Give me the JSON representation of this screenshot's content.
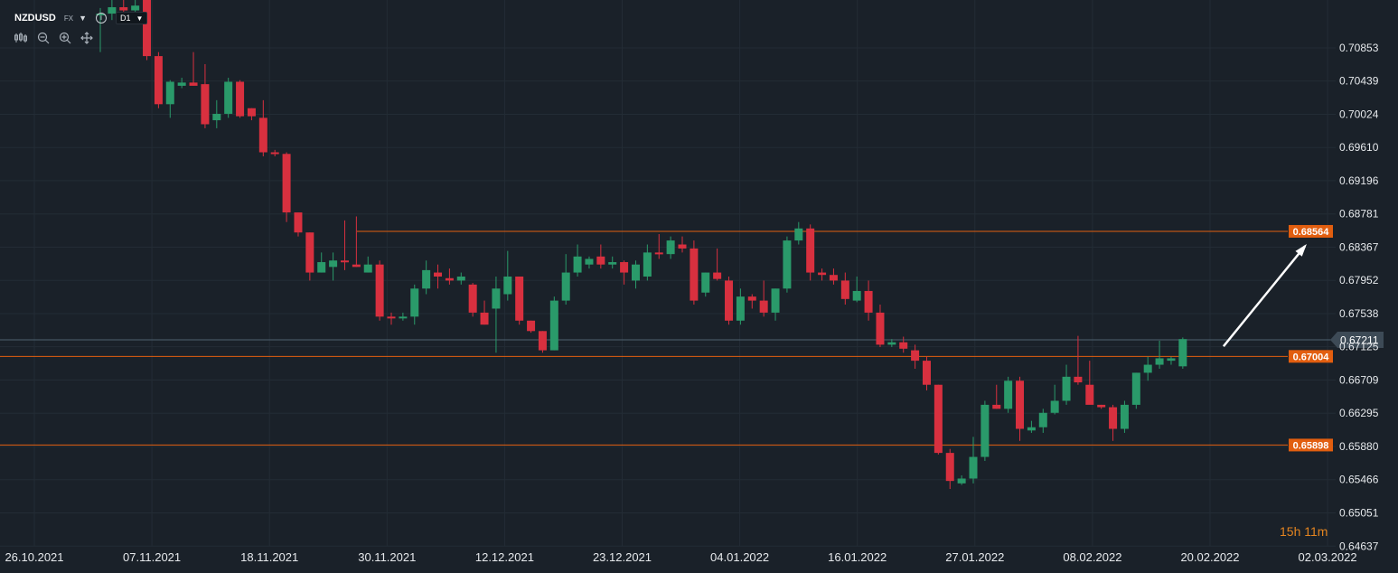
{
  "header": {
    "symbol": "NZDUSD",
    "market": "FX",
    "timeframe": "D1",
    "tools": [
      "bars-icon",
      "zoom-out-icon",
      "zoom-in-icon",
      "move-icon"
    ]
  },
  "countdown": "15h 11m",
  "chart_data": {
    "type": "candlestick",
    "symbol": "NZDUSD",
    "ylim": [
      0.6464,
      0.7145
    ],
    "y_ticks": [
      "0.70853",
      "0.70439",
      "0.70024",
      "0.69610",
      "0.69196",
      "0.68781",
      "0.68367",
      "0.67952",
      "0.67538",
      "0.67125",
      "0.66709",
      "0.66295",
      "0.65880",
      "0.65466",
      "0.65051",
      "0.64637"
    ],
    "x_ticks": [
      "26.10.2021",
      "07.11.2021",
      "18.11.2021",
      "30.11.2021",
      "12.12.2021",
      "23.12.2021",
      "04.01.2022",
      "16.01.2022",
      "27.01.2022",
      "08.02.2022",
      "20.02.2022",
      "02.03.2022"
    ],
    "candles": [
      [
        0.7126,
        0.7135,
        0.708,
        0.7128
      ],
      [
        0.7128,
        0.7145,
        0.712,
        0.7136
      ],
      [
        0.7136,
        0.7145,
        0.7123,
        0.7132
      ],
      [
        0.7132,
        0.7145,
        0.7125,
        0.7138
      ],
      [
        0.717,
        0.7172,
        0.707,
        0.7075
      ],
      [
        0.7075,
        0.708,
        0.701,
        0.7015
      ],
      [
        0.7015,
        0.7045,
        0.6998,
        0.7043
      ],
      [
        0.7038,
        0.7048,
        0.7035,
        0.7042
      ],
      [
        0.7042,
        0.708,
        0.7038,
        0.7038
      ],
      [
        0.704,
        0.7065,
        0.6985,
        0.699
      ],
      [
        0.6995,
        0.702,
        0.6985,
        0.7003
      ],
      [
        0.7003,
        0.7048,
        0.6998,
        0.7043
      ],
      [
        0.7043,
        0.7045,
        0.6998,
        0.7
      ],
      [
        0.701,
        0.701,
        0.6995,
        0.7
      ],
      [
        0.6998,
        0.702,
        0.695,
        0.6955
      ],
      [
        0.6955,
        0.6958,
        0.695,
        0.6953
      ],
      [
        0.6953,
        0.6955,
        0.6868,
        0.688
      ],
      [
        0.688,
        0.688,
        0.685,
        0.6855
      ],
      [
        0.6855,
        0.6855,
        0.6795,
        0.6805
      ],
      [
        0.6805,
        0.683,
        0.6805,
        0.6818
      ],
      [
        0.6812,
        0.683,
        0.6795,
        0.682
      ],
      [
        0.682,
        0.687,
        0.6808,
        0.6818
      ],
      [
        0.6815,
        0.6875,
        0.6812,
        0.6812
      ],
      [
        0.6805,
        0.6825,
        0.6805,
        0.6815
      ],
      [
        0.6815,
        0.682,
        0.6745,
        0.675
      ],
      [
        0.675,
        0.6755,
        0.674,
        0.6748
      ],
      [
        0.675,
        0.6755,
        0.6745,
        0.675
      ],
      [
        0.675,
        0.679,
        0.674,
        0.6785
      ],
      [
        0.6785,
        0.682,
        0.6778,
        0.6808
      ],
      [
        0.6805,
        0.6815,
        0.6785,
        0.68
      ],
      [
        0.6798,
        0.681,
        0.679,
        0.6795
      ],
      [
        0.6795,
        0.6805,
        0.679,
        0.68
      ],
      [
        0.679,
        0.6792,
        0.675,
        0.6755
      ],
      [
        0.6755,
        0.677,
        0.674,
        0.674
      ],
      [
        0.676,
        0.68,
        0.6705,
        0.6785
      ],
      [
        0.6778,
        0.6832,
        0.677,
        0.68
      ],
      [
        0.68,
        0.68,
        0.674,
        0.6745
      ],
      [
        0.6745,
        0.6745,
        0.673,
        0.6732
      ],
      [
        0.6732,
        0.6732,
        0.6705,
        0.6708
      ],
      [
        0.6708,
        0.6775,
        0.6708,
        0.677
      ],
      [
        0.677,
        0.6828,
        0.6765,
        0.6805
      ],
      [
        0.6805,
        0.684,
        0.68,
        0.6825
      ],
      [
        0.6815,
        0.6825,
        0.681,
        0.6822
      ],
      [
        0.6825,
        0.684,
        0.681,
        0.6815
      ],
      [
        0.6815,
        0.6825,
        0.681,
        0.6818
      ],
      [
        0.6818,
        0.682,
        0.679,
        0.6805
      ],
      [
        0.6795,
        0.682,
        0.6785,
        0.6815
      ],
      [
        0.68,
        0.684,
        0.6795,
        0.683
      ],
      [
        0.683,
        0.6853,
        0.6822,
        0.6828
      ],
      [
        0.6828,
        0.685,
        0.6822,
        0.6845
      ],
      [
        0.684,
        0.685,
        0.683,
        0.6835
      ],
      [
        0.6835,
        0.6845,
        0.6765,
        0.677
      ],
      [
        0.678,
        0.6805,
        0.6775,
        0.6805
      ],
      [
        0.6805,
        0.6835,
        0.6795,
        0.6797
      ],
      [
        0.6795,
        0.68,
        0.674,
        0.6745
      ],
      [
        0.6745,
        0.6785,
        0.674,
        0.6775
      ],
      [
        0.6775,
        0.6778,
        0.676,
        0.677
      ],
      [
        0.677,
        0.6795,
        0.675,
        0.6755
      ],
      [
        0.6755,
        0.6785,
        0.6745,
        0.6785
      ],
      [
        0.6785,
        0.685,
        0.678,
        0.6845
      ],
      [
        0.6845,
        0.6868,
        0.684,
        0.686
      ],
      [
        0.686,
        0.6865,
        0.6795,
        0.6805
      ],
      [
        0.6805,
        0.681,
        0.6795,
        0.6802
      ],
      [
        0.6802,
        0.681,
        0.679,
        0.6795
      ],
      [
        0.6795,
        0.6805,
        0.6765,
        0.6772
      ],
      [
        0.677,
        0.68,
        0.6768,
        0.6782
      ],
      [
        0.6782,
        0.6795,
        0.6745,
        0.6755
      ],
      [
        0.6755,
        0.6765,
        0.6712,
        0.6715
      ],
      [
        0.6715,
        0.6722,
        0.6712,
        0.6718
      ],
      [
        0.6718,
        0.6725,
        0.6705,
        0.671
      ],
      [
        0.6708,
        0.6715,
        0.6685,
        0.6695
      ],
      [
        0.6695,
        0.67,
        0.6658,
        0.6665
      ],
      [
        0.6665,
        0.6665,
        0.6578,
        0.658
      ],
      [
        0.658,
        0.6585,
        0.6535,
        0.6545
      ],
      [
        0.6542,
        0.6552,
        0.654,
        0.6548
      ],
      [
        0.6548,
        0.66,
        0.6542,
        0.6575
      ],
      [
        0.6575,
        0.6645,
        0.657,
        0.664
      ],
      [
        0.664,
        0.6665,
        0.6635,
        0.6635
      ],
      [
        0.6635,
        0.6675,
        0.663,
        0.667
      ],
      [
        0.667,
        0.6675,
        0.6595,
        0.661
      ],
      [
        0.6608,
        0.662,
        0.6605,
        0.6612
      ],
      [
        0.6612,
        0.6635,
        0.6605,
        0.663
      ],
      [
        0.663,
        0.6665,
        0.6628,
        0.6645
      ],
      [
        0.6645,
        0.669,
        0.664,
        0.6675
      ],
      [
        0.6675,
        0.6726,
        0.6665,
        0.6668
      ],
      [
        0.6665,
        0.6695,
        0.6645,
        0.664
      ],
      [
        0.664,
        0.664,
        0.6635,
        0.6637
      ],
      [
        0.6637,
        0.664,
        0.6595,
        0.661
      ],
      [
        0.661,
        0.6645,
        0.6605,
        0.664
      ],
      [
        0.664,
        0.668,
        0.6635,
        0.668
      ],
      [
        0.668,
        0.67,
        0.667,
        0.669
      ],
      [
        0.669,
        0.672,
        0.6685,
        0.6698
      ],
      [
        0.6695,
        0.67,
        0.669,
        0.6698
      ],
      [
        0.6688,
        0.6724,
        0.6685,
        0.6722
      ]
    ],
    "levels": [
      {
        "value": 0.68564,
        "label": "0.68564",
        "color": "#e25e0f"
      },
      {
        "value": 0.67004,
        "label": "0.67004",
        "color": "#e25e0f"
      },
      {
        "value": 0.65898,
        "label": "0.65898",
        "color": "#e25e0f"
      }
    ],
    "current_price": {
      "value": 0.67211,
      "label": "0.67211"
    },
    "arrow": {
      "from_index": 96.5,
      "from_price": 0.6713,
      "to_index": 103.5,
      "to_price": 0.6838
    },
    "colors": {
      "up": "#2a9a6a",
      "down": "#d8303f",
      "grid": "#232c35",
      "axis_text": "#e6e9ec",
      "level": "#e25e0f"
    }
  }
}
